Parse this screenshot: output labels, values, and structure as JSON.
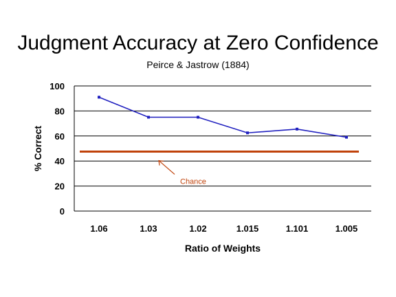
{
  "chart_data": {
    "type": "line",
    "title": "Judgment Accuracy at Zero Confidence",
    "subtitle": "Peirce & Jastrow (1884)",
    "xlabel": "Ratio of Weights",
    "ylabel": "% Correct",
    "categories": [
      "1.06",
      "1.03",
      "1.02",
      "1.015",
      "1.101",
      "1.005"
    ],
    "series": [
      {
        "values": [
          91,
          75,
          75,
          62.5,
          65.5,
          59
        ],
        "color": "#1f1fbf"
      }
    ],
    "reference_line": {
      "value": 47.5,
      "color": "#c0420a"
    },
    "annotation": {
      "text": "Chance",
      "color": "#c0420a"
    },
    "ylim": [
      0,
      100
    ],
    "yticks": [
      0,
      20,
      40,
      60,
      80,
      100
    ],
    "grid": true,
    "legend": "none"
  }
}
